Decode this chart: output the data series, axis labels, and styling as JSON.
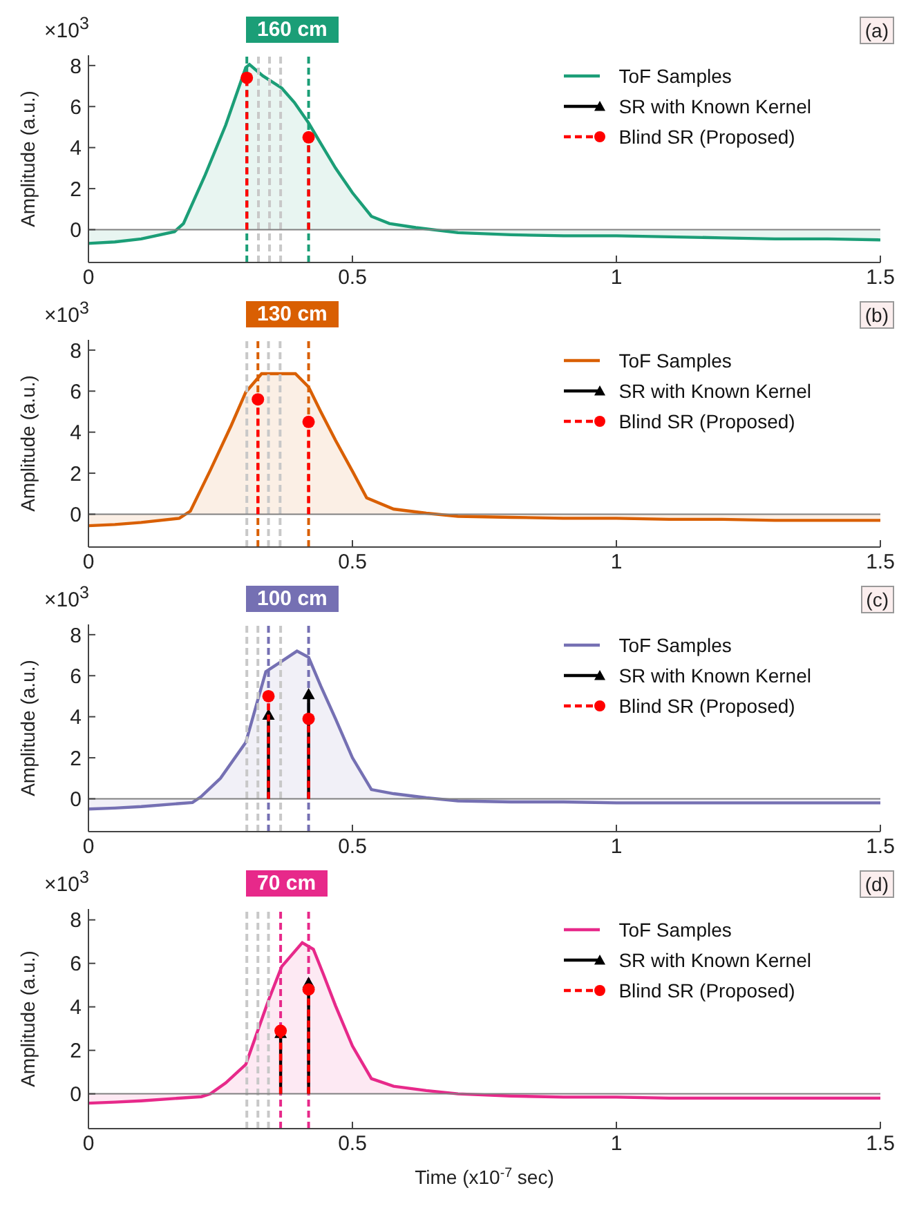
{
  "chart_data": [
    {
      "type": "area",
      "title": "160 cm",
      "ylabel": "Amplitude (a.u.)",
      "annotations": [
        "×10$^{3}$",
        "(a)"
      ],
      "xlim": [
        0,
        1.5
      ],
      "xticks": [
        0,
        0.5,
        1,
        1.5
      ],
      "ylim": [
        -1.6,
        8.5
      ],
      "yticks": [
        0,
        2,
        4,
        6,
        8
      ],
      "legend": "top right",
      "grid": false,
      "series": [
        {
          "name": "ToF Samples",
          "type": "area",
          "color": "#1b9e77",
          "x": [
            0,
            0.05,
            0.1,
            0.163,
            0.18,
            0.22,
            0.26,
            0.298,
            0.305,
            0.33,
            0.366,
            0.39,
            0.417,
            0.44,
            0.468,
            0.5,
            0.536,
            0.57,
            0.62,
            0.7,
            0.8,
            0.9,
            1.0,
            1.1,
            1.2,
            1.3,
            1.4,
            1.5
          ],
          "values": [
            -0.67,
            -0.6,
            -0.45,
            -0.1,
            0.3,
            2.6,
            5.1,
            7.9,
            8.05,
            7.5,
            6.9,
            6.2,
            5.2,
            4.2,
            3.0,
            1.8,
            0.65,
            0.3,
            0.1,
            -0.15,
            -0.25,
            -0.3,
            -0.3,
            -0.35,
            -0.4,
            -0.45,
            -0.45,
            -0.5
          ]
        },
        {
          "name": "SR with Known Kernel",
          "type": "lollipop",
          "color": "#000000",
          "marker": "triangle",
          "line_style": "solid"
        },
        {
          "name": "Blind SR (Proposed)",
          "type": "lollipop",
          "color": "#ff0000",
          "marker": "circle",
          "line_style": "dashed",
          "x": [
            0.3,
            0.417
          ],
          "values": [
            7.4,
            4.5
          ]
        }
      ],
      "ref_lines": [
        {
          "axis": "x",
          "value": 0.322,
          "color": "#c8c8c8",
          "line_style": "dashed"
        },
        {
          "axis": "x",
          "value": 0.343,
          "color": "#c8c8c8",
          "line_style": "dashed"
        },
        {
          "axis": "x",
          "value": 0.364,
          "color": "#c8c8c8",
          "line_style": "dashed"
        },
        {
          "axis": "x",
          "value": 0.3,
          "color": "#1b9e77",
          "line_style": "dashed"
        },
        {
          "axis": "x",
          "value": 0.417,
          "color": "#1b9e77",
          "line_style": "dashed"
        },
        {
          "axis": "y",
          "value": 0,
          "color": "#808080",
          "line_style": "solid"
        }
      ]
    },
    {
      "type": "area",
      "title": "130 cm",
      "ylabel": "Amplitude (a.u.)",
      "annotations": [
        "×10$^{3}$",
        "(b)"
      ],
      "xlim": [
        0,
        1.5
      ],
      "xticks": [
        0,
        0.5,
        1,
        1.5
      ],
      "ylim": [
        -1.6,
        8.5
      ],
      "yticks": [
        0,
        2,
        4,
        6,
        8
      ],
      "legend": "top right",
      "grid": false,
      "series": [
        {
          "name": "ToF Samples",
          "type": "area",
          "color": "#d95f02",
          "x": [
            0,
            0.05,
            0.1,
            0.172,
            0.193,
            0.23,
            0.27,
            0.298,
            0.328,
            0.36,
            0.392,
            0.417,
            0.44,
            0.468,
            0.5,
            0.527,
            0.578,
            0.64,
            0.7,
            0.8,
            0.9,
            1.0,
            1.1,
            1.2,
            1.3,
            1.4,
            1.5
          ],
          "values": [
            -0.56,
            -0.5,
            -0.4,
            -0.2,
            0.15,
            2.1,
            4.3,
            5.95,
            6.85,
            6.85,
            6.85,
            6.2,
            5.0,
            3.6,
            2.1,
            0.8,
            0.25,
            0.05,
            -0.1,
            -0.15,
            -0.2,
            -0.2,
            -0.25,
            -0.25,
            -0.3,
            -0.3,
            -0.3
          ]
        },
        {
          "name": "SR with Known Kernel",
          "type": "lollipop",
          "color": "#000000",
          "marker": "triangle",
          "line_style": "solid"
        },
        {
          "name": "Blind SR (Proposed)",
          "type": "lollipop",
          "color": "#ff0000",
          "marker": "circle",
          "line_style": "dashed",
          "x": [
            0.321,
            0.417
          ],
          "values": [
            5.6,
            4.5
          ]
        }
      ],
      "ref_lines": [
        {
          "axis": "x",
          "value": 0.3,
          "color": "#c8c8c8",
          "line_style": "dashed"
        },
        {
          "axis": "x",
          "value": 0.341,
          "color": "#c8c8c8",
          "line_style": "dashed"
        },
        {
          "axis": "x",
          "value": 0.363,
          "color": "#c8c8c8",
          "line_style": "dashed"
        },
        {
          "axis": "x",
          "value": 0.321,
          "color": "#d95f02",
          "line_style": "dashed"
        },
        {
          "axis": "x",
          "value": 0.417,
          "color": "#d95f02",
          "line_style": "dashed"
        },
        {
          "axis": "y",
          "value": 0,
          "color": "#808080",
          "line_style": "solid"
        }
      ]
    },
    {
      "type": "area",
      "title": "100 cm",
      "ylabel": "Amplitude (a.u.)",
      "annotations": [
        "×10$^{3}$",
        "(c)"
      ],
      "xlim": [
        0,
        1.5
      ],
      "xticks": [
        0,
        0.5,
        1,
        1.5
      ],
      "ylim": [
        -1.6,
        8.5
      ],
      "yticks": [
        0,
        2,
        4,
        6,
        8
      ],
      "legend": "top right",
      "grid": false,
      "series": [
        {
          "name": "ToF Samples",
          "type": "area",
          "color": "#7570b3",
          "x": [
            0,
            0.05,
            0.1,
            0.197,
            0.213,
            0.25,
            0.298,
            0.336,
            0.366,
            0.395,
            0.417,
            0.44,
            0.468,
            0.5,
            0.536,
            0.578,
            0.64,
            0.7,
            0.8,
            0.9,
            1.0,
            1.1,
            1.2,
            1.3,
            1.4,
            1.5
          ],
          "values": [
            -0.5,
            -0.45,
            -0.38,
            -0.18,
            0.1,
            1.0,
            2.75,
            6.2,
            6.7,
            7.2,
            6.9,
            5.5,
            3.9,
            2.0,
            0.45,
            0.25,
            0.05,
            -0.1,
            -0.15,
            -0.15,
            -0.2,
            -0.2,
            -0.2,
            -0.2,
            -0.2,
            -0.2
          ]
        },
        {
          "name": "SR with Known Kernel",
          "type": "lollipop",
          "color": "#000000",
          "marker": "triangle",
          "line_style": "solid",
          "x": [
            0.341,
            0.417
          ],
          "values": [
            4.1,
            5.1
          ]
        },
        {
          "name": "Blind SR (Proposed)",
          "type": "lollipop",
          "color": "#ff0000",
          "marker": "circle",
          "line_style": "dashed",
          "x": [
            0.341,
            0.417
          ],
          "values": [
            5.0,
            3.9
          ]
        }
      ],
      "ref_lines": [
        {
          "axis": "x",
          "value": 0.3,
          "color": "#c8c8c8",
          "line_style": "dashed"
        },
        {
          "axis": "x",
          "value": 0.321,
          "color": "#c8c8c8",
          "line_style": "dashed"
        },
        {
          "axis": "x",
          "value": 0.364,
          "color": "#c8c8c8",
          "line_style": "dashed"
        },
        {
          "axis": "x",
          "value": 0.341,
          "color": "#7570b3",
          "line_style": "dashed"
        },
        {
          "axis": "x",
          "value": 0.417,
          "color": "#7570b3",
          "line_style": "dashed"
        },
        {
          "axis": "y",
          "value": 0,
          "color": "#808080",
          "line_style": "solid"
        }
      ]
    },
    {
      "type": "area",
      "title": "70 cm",
      "xlabel": "Time (x10$^{-7}$ sec)",
      "ylabel": "Amplitude (a.u.)",
      "annotations": [
        "×10$^{3}$",
        "(d)"
      ],
      "xlim": [
        0,
        1.5
      ],
      "xticks": [
        0,
        0.5,
        1,
        1.5
      ],
      "ylim": [
        -1.6,
        8.5
      ],
      "yticks": [
        0,
        2,
        4,
        6,
        8
      ],
      "legend": "top right",
      "grid": false,
      "series": [
        {
          "name": "ToF Samples",
          "type": "area",
          "color": "#e7298a",
          "x": [
            0,
            0.05,
            0.1,
            0.214,
            0.231,
            0.26,
            0.298,
            0.341,
            0.366,
            0.405,
            0.426,
            0.445,
            0.468,
            0.5,
            0.536,
            0.578,
            0.64,
            0.7,
            0.8,
            0.9,
            1.0,
            1.1,
            1.2,
            1.3,
            1.4,
            1.5
          ],
          "values": [
            -0.43,
            -0.38,
            -0.32,
            -0.13,
            0.0,
            0.5,
            1.35,
            4.3,
            5.85,
            6.95,
            6.65,
            5.5,
            4.05,
            2.2,
            0.7,
            0.35,
            0.15,
            0.0,
            -0.1,
            -0.15,
            -0.15,
            -0.2,
            -0.2,
            -0.2,
            -0.2,
            -0.2
          ]
        },
        {
          "name": "SR with Known Kernel",
          "type": "lollipop",
          "color": "#000000",
          "marker": "triangle",
          "line_style": "solid",
          "x": [
            0.364,
            0.417
          ],
          "values": [
            2.8,
            5.1
          ]
        },
        {
          "name": "Blind SR (Proposed)",
          "type": "lollipop",
          "color": "#ff0000",
          "marker": "circle",
          "line_style": "dashed",
          "x": [
            0.364,
            0.417
          ],
          "values": [
            2.9,
            4.8
          ]
        }
      ],
      "ref_lines": [
        {
          "axis": "x",
          "value": 0.3,
          "color": "#c8c8c8",
          "line_style": "dashed"
        },
        {
          "axis": "x",
          "value": 0.321,
          "color": "#c8c8c8",
          "line_style": "dashed"
        },
        {
          "axis": "x",
          "value": 0.341,
          "color": "#c8c8c8",
          "line_style": "dashed"
        },
        {
          "axis": "x",
          "value": 0.364,
          "color": "#e7298a",
          "line_style": "dashed"
        },
        {
          "axis": "x",
          "value": 0.417,
          "color": "#e7298a",
          "line_style": "dashed"
        },
        {
          "axis": "y",
          "value": 0,
          "color": "#808080",
          "line_style": "solid"
        }
      ]
    }
  ]
}
